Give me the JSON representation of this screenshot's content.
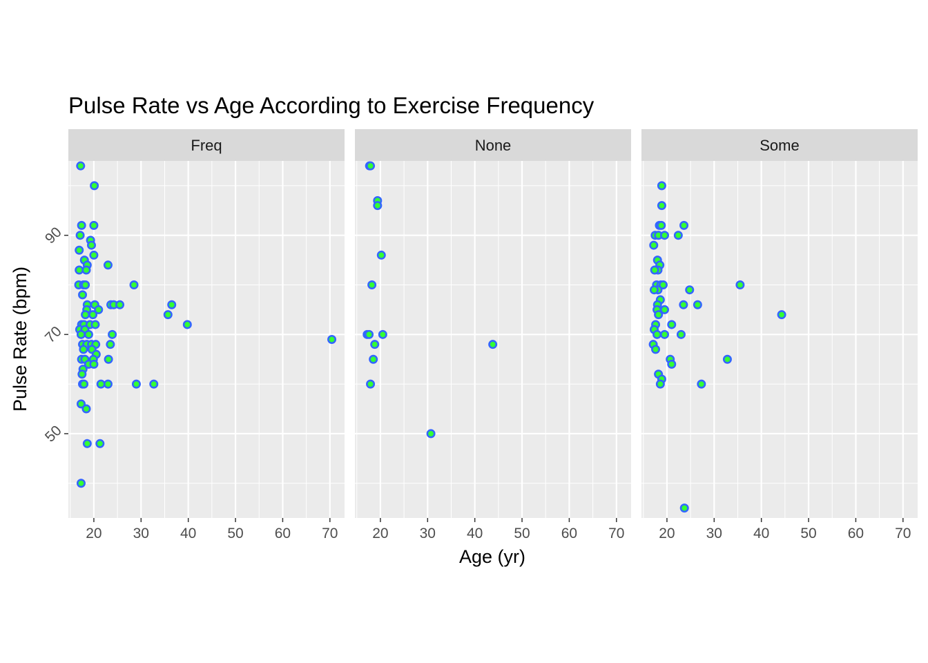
{
  "chart_data": {
    "type": "scatter",
    "title": "Pulse Rate vs Age According to Exercise Frequency",
    "xlabel": "Age (yr)",
    "ylabel": "Pulse Rate (bpm)",
    "xlim": [
      14.6,
      73.1
    ],
    "ylim": [
      33,
      105
    ],
    "x_ticks": [
      20,
      30,
      40,
      50,
      60,
      70
    ],
    "x_tick_labels": [
      "20",
      "30",
      "40",
      "50",
      "60",
      "70"
    ],
    "y_ticks": [
      50,
      70,
      90
    ],
    "y_tick_labels": [
      "50",
      "70",
      "90"
    ],
    "grid": true,
    "legend": "none",
    "colors": {
      "point_fill": "#33ff33",
      "point_outline": "#3366ff",
      "panel_background": "#ebebeb",
      "strip_background": "#d9d9d9",
      "grid": "#ffffff"
    },
    "panels": [
      {
        "name": "Freq",
        "points": [
          {
            "x": 17.2,
            "y": 104
          },
          {
            "x": 20.1,
            "y": 100
          },
          {
            "x": 17.4,
            "y": 92
          },
          {
            "x": 20.0,
            "y": 92
          },
          {
            "x": 17.1,
            "y": 90
          },
          {
            "x": 19.3,
            "y": 89
          },
          {
            "x": 19.5,
            "y": 88
          },
          {
            "x": 16.9,
            "y": 87
          },
          {
            "x": 20.0,
            "y": 86
          },
          {
            "x": 18.0,
            "y": 85
          },
          {
            "x": 18.6,
            "y": 84
          },
          {
            "x": 23.0,
            "y": 84
          },
          {
            "x": 16.9,
            "y": 83
          },
          {
            "x": 18.4,
            "y": 83
          },
          {
            "x": 28.5,
            "y": 80
          },
          {
            "x": 16.8,
            "y": 80
          },
          {
            "x": 17.8,
            "y": 80
          },
          {
            "x": 18.2,
            "y": 80
          },
          {
            "x": 17.6,
            "y": 78
          },
          {
            "x": 23.6,
            "y": 76
          },
          {
            "x": 24.2,
            "y": 76
          },
          {
            "x": 25.5,
            "y": 76
          },
          {
            "x": 36.5,
            "y": 76
          },
          {
            "x": 18.6,
            "y": 76
          },
          {
            "x": 20.2,
            "y": 76
          },
          {
            "x": 21.0,
            "y": 75
          },
          {
            "x": 18.5,
            "y": 75
          },
          {
            "x": 35.7,
            "y": 74
          },
          {
            "x": 18.2,
            "y": 74
          },
          {
            "x": 19.8,
            "y": 74
          },
          {
            "x": 17.4,
            "y": 72
          },
          {
            "x": 17.9,
            "y": 72
          },
          {
            "x": 19.2,
            "y": 72
          },
          {
            "x": 20.3,
            "y": 72
          },
          {
            "x": 39.8,
            "y": 72
          },
          {
            "x": 17.0,
            "y": 71
          },
          {
            "x": 18.1,
            "y": 71
          },
          {
            "x": 17.3,
            "y": 70
          },
          {
            "x": 18.9,
            "y": 70
          },
          {
            "x": 23.9,
            "y": 70
          },
          {
            "x": 70.4,
            "y": 69
          },
          {
            "x": 17.6,
            "y": 68
          },
          {
            "x": 18.5,
            "y": 68
          },
          {
            "x": 19.5,
            "y": 68
          },
          {
            "x": 20.4,
            "y": 68
          },
          {
            "x": 23.5,
            "y": 68
          },
          {
            "x": 17.8,
            "y": 67
          },
          {
            "x": 19.6,
            "y": 67
          },
          {
            "x": 20.5,
            "y": 66
          },
          {
            "x": 17.4,
            "y": 65
          },
          {
            "x": 18.1,
            "y": 65
          },
          {
            "x": 19.9,
            "y": 65
          },
          {
            "x": 23.1,
            "y": 65
          },
          {
            "x": 18.9,
            "y": 64
          },
          {
            "x": 20.0,
            "y": 64
          },
          {
            "x": 17.7,
            "y": 63
          },
          {
            "x": 17.5,
            "y": 62
          },
          {
            "x": 17.6,
            "y": 60
          },
          {
            "x": 17.9,
            "y": 60
          },
          {
            "x": 21.5,
            "y": 60
          },
          {
            "x": 23.0,
            "y": 60
          },
          {
            "x": 29.0,
            "y": 60
          },
          {
            "x": 32.7,
            "y": 60
          },
          {
            "x": 17.3,
            "y": 56
          },
          {
            "x": 18.4,
            "y": 55
          },
          {
            "x": 18.6,
            "y": 48
          },
          {
            "x": 21.3,
            "y": 48
          },
          {
            "x": 17.3,
            "y": 40
          }
        ]
      },
      {
        "name": "None",
        "points": [
          {
            "x": 17.7,
            "y": 104
          },
          {
            "x": 17.9,
            "y": 104
          },
          {
            "x": 19.4,
            "y": 97
          },
          {
            "x": 19.4,
            "y": 96
          },
          {
            "x": 20.2,
            "y": 86
          },
          {
            "x": 18.2,
            "y": 80
          },
          {
            "x": 17.2,
            "y": 70
          },
          {
            "x": 17.6,
            "y": 70
          },
          {
            "x": 20.5,
            "y": 70
          },
          {
            "x": 18.8,
            "y": 68
          },
          {
            "x": 18.5,
            "y": 65
          },
          {
            "x": 43.8,
            "y": 68
          },
          {
            "x": 17.9,
            "y": 60
          },
          {
            "x": 30.7,
            "y": 50
          }
        ]
      },
      {
        "name": "Some",
        "points": [
          {
            "x": 18.9,
            "y": 100
          },
          {
            "x": 18.9,
            "y": 96
          },
          {
            "x": 18.4,
            "y": 92
          },
          {
            "x": 18.8,
            "y": 92
          },
          {
            "x": 23.6,
            "y": 92
          },
          {
            "x": 17.5,
            "y": 90
          },
          {
            "x": 18.2,
            "y": 90
          },
          {
            "x": 19.5,
            "y": 90
          },
          {
            "x": 22.4,
            "y": 90
          },
          {
            "x": 17.2,
            "y": 88
          },
          {
            "x": 18.0,
            "y": 85
          },
          {
            "x": 18.5,
            "y": 84
          },
          {
            "x": 18.1,
            "y": 83
          },
          {
            "x": 17.4,
            "y": 83
          },
          {
            "x": 17.8,
            "y": 80
          },
          {
            "x": 18.7,
            "y": 80
          },
          {
            "x": 19.2,
            "y": 80
          },
          {
            "x": 18.1,
            "y": 79
          },
          {
            "x": 17.3,
            "y": 79
          },
          {
            "x": 24.8,
            "y": 79
          },
          {
            "x": 35.5,
            "y": 80
          },
          {
            "x": 18.6,
            "y": 77
          },
          {
            "x": 18.0,
            "y": 76
          },
          {
            "x": 23.5,
            "y": 76
          },
          {
            "x": 26.5,
            "y": 76
          },
          {
            "x": 17.9,
            "y": 75
          },
          {
            "x": 19.5,
            "y": 75
          },
          {
            "x": 18.2,
            "y": 74
          },
          {
            "x": 44.3,
            "y": 74
          },
          {
            "x": 17.6,
            "y": 72
          },
          {
            "x": 21.0,
            "y": 72
          },
          {
            "x": 17.3,
            "y": 71
          },
          {
            "x": 17.9,
            "y": 70
          },
          {
            "x": 19.5,
            "y": 70
          },
          {
            "x": 23.0,
            "y": 70
          },
          {
            "x": 17.1,
            "y": 68
          },
          {
            "x": 17.6,
            "y": 67
          },
          {
            "x": 20.7,
            "y": 65
          },
          {
            "x": 21.0,
            "y": 64
          },
          {
            "x": 32.8,
            "y": 65
          },
          {
            "x": 18.2,
            "y": 62
          },
          {
            "x": 18.9,
            "y": 61
          },
          {
            "x": 18.6,
            "y": 60
          },
          {
            "x": 27.3,
            "y": 60
          },
          {
            "x": 23.7,
            "y": 35
          }
        ]
      }
    ]
  }
}
